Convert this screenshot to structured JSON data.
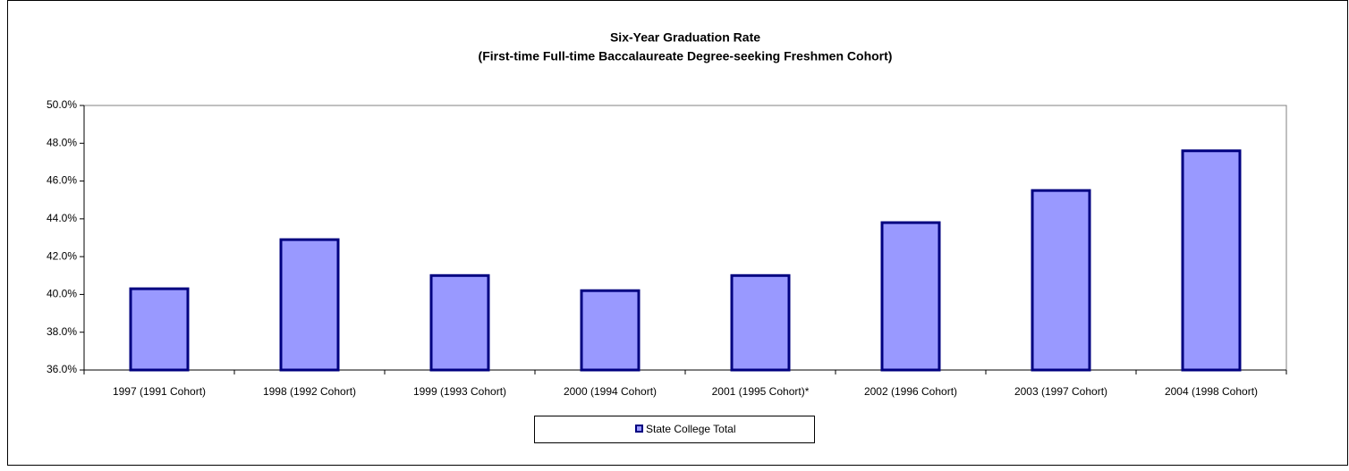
{
  "chart_data": {
    "type": "bar",
    "title": "Six-Year Graduation Rate",
    "subtitle": "(First-time Full-time Baccalaureate Degree-seeking Freshmen Cohort)",
    "categories": [
      "1997 (1991 Cohort)",
      "1998 (1992 Cohort)",
      "1999 (1993 Cohort)",
      "2000 (1994 Cohort)",
      "2001 (1995 Cohort)*",
      "2002 (1996 Cohort)",
      "2003 (1997 Cohort)",
      "2004 (1998 Cohort)"
    ],
    "series": [
      {
        "name": "State College Total",
        "color": "#9999ff",
        "values": [
          40.3,
          42.9,
          41.0,
          40.2,
          41.0,
          43.8,
          45.5,
          47.6
        ]
      }
    ],
    "ylim": [
      36,
      50
    ],
    "yticks": [
      {
        "value": 36,
        "label": "36.0%"
      },
      {
        "value": 38,
        "label": "38.0%"
      },
      {
        "value": 40,
        "label": "40.0%"
      },
      {
        "value": 42,
        "label": "42.0%"
      },
      {
        "value": 44,
        "label": "44.0%"
      },
      {
        "value": 46,
        "label": "46.0%"
      },
      {
        "value": 48,
        "label": "48.0%"
      },
      {
        "value": 50,
        "label": "50.0%"
      }
    ],
    "legend": "bottom"
  }
}
